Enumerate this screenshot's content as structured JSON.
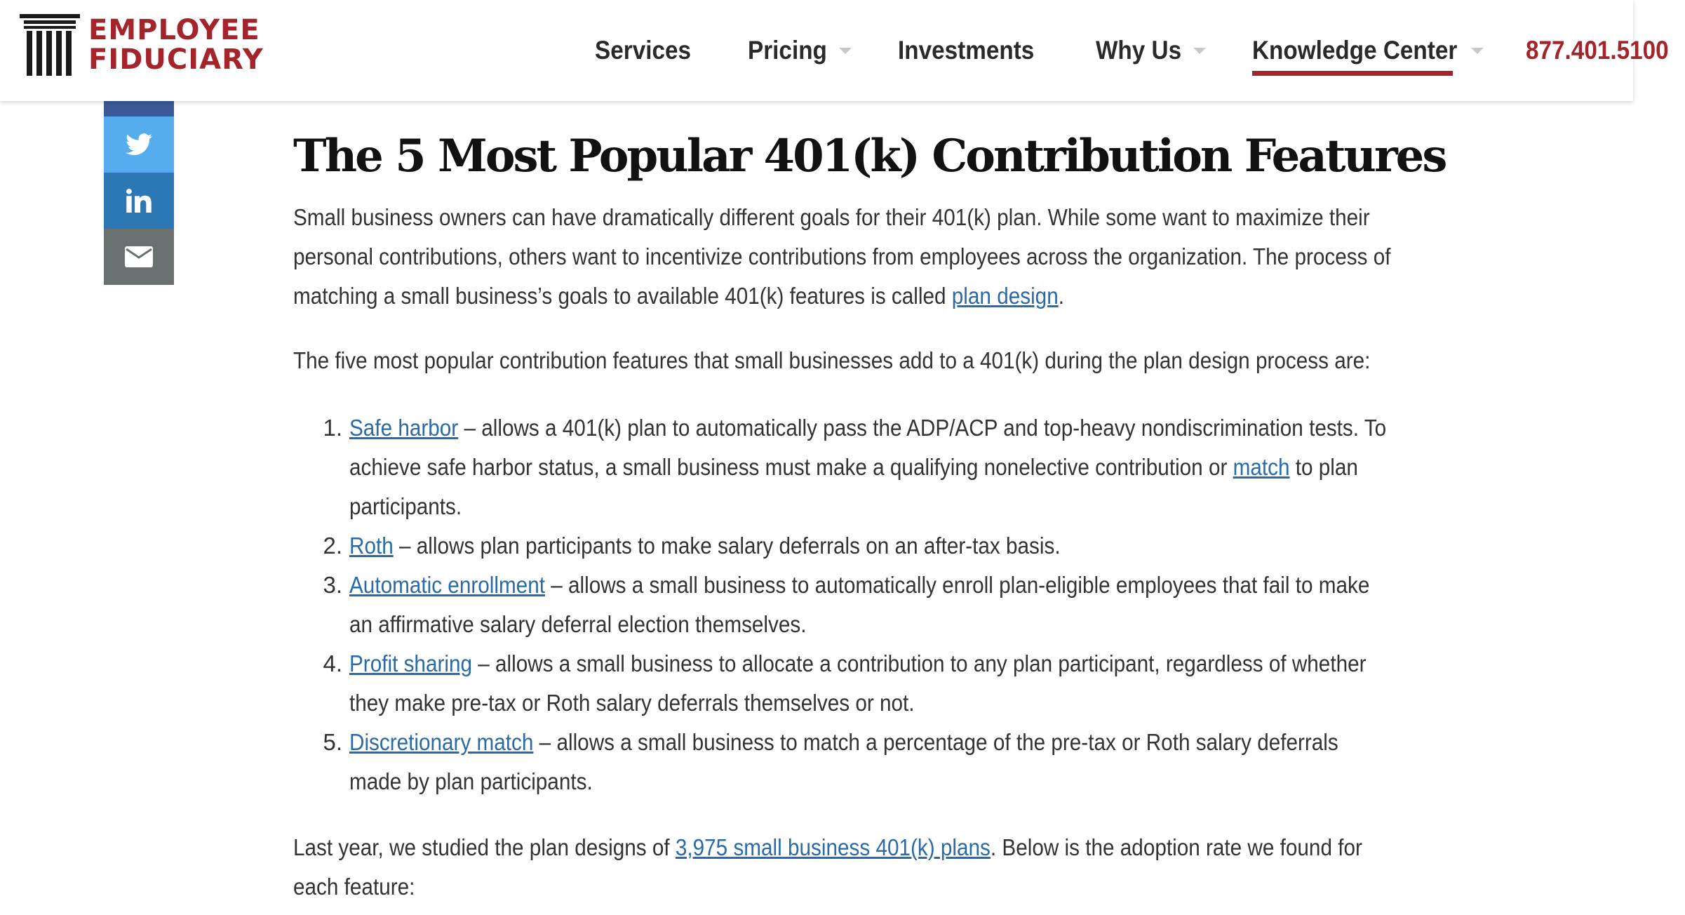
{
  "brand": {
    "line1": "EMPLOYEE",
    "line2": "FIDUCIARY",
    "color": "#a3252b",
    "icon": "column-pillar-icon"
  },
  "nav": {
    "items": [
      {
        "label": "Services",
        "has_dropdown": false,
        "active": false
      },
      {
        "label": "Pricing",
        "has_dropdown": true,
        "active": false
      },
      {
        "label": "Investments",
        "has_dropdown": false,
        "active": false
      },
      {
        "label": "Why Us",
        "has_dropdown": true,
        "active": false
      },
      {
        "label": "Knowledge Center",
        "has_dropdown": true,
        "active": true
      }
    ],
    "phone": "877.401.5100"
  },
  "share": {
    "buttons": [
      {
        "name": "twitter",
        "icon": "twitter-icon",
        "color": "#55acee"
      },
      {
        "name": "linkedin",
        "icon": "linkedin-icon",
        "color": "#2d77b5"
      },
      {
        "name": "email",
        "icon": "envelope-icon",
        "color": "#6a7070"
      }
    ]
  },
  "article": {
    "title": "The 5 Most Popular 401(k) Contribution Features",
    "intro": {
      "before": "Small business owners can have dramatically different goals for their 401(k) plan. While some want to maximize their personal contributions, others want to incentivize contributions from employees across the organization. The process of matching a small business’s goals to available 401(k) features is called ",
      "link": "plan design",
      "after": "."
    },
    "lead": "The five most popular contribution features that small businesses add to a 401(k) during the plan design process are:",
    "features": [
      {
        "num": "1.",
        "link": "Safe harbor",
        "text": " – allows a 401(k) plan to automatically pass the ADP/ACP and top-heavy nondiscrimination tests. To achieve safe harbor status, a small business must make a qualifying nonelective contribution or ",
        "link2": "match",
        "text2": " to plan participants."
      },
      {
        "num": "2.",
        "link": "Roth",
        "text": " – allows plan participants to make salary deferrals on an after-tax basis."
      },
      {
        "num": "3.",
        "link": "Automatic enrollment",
        "text": " – allows a small business to automatically enroll plan-eligible employees that fail to make an affirmative salary deferral election themselves."
      },
      {
        "num": "4.",
        "link": "Profit sharing",
        "text": " – allows a small business to allocate a contribution to any plan participant, regardless of whether they make pre-tax or Roth salary deferrals themselves or not."
      },
      {
        "num": "5.",
        "link": "Discretionary match",
        "text": " – allows a small business to match a percentage of the pre-tax or Roth salary deferrals made by plan participants."
      }
    ],
    "closing": {
      "before": "Last year, we studied the plan designs of ",
      "link": "3,975 small business 401(k) plans",
      "after": ". Below is the adoption rate we found for each feature:"
    }
  }
}
